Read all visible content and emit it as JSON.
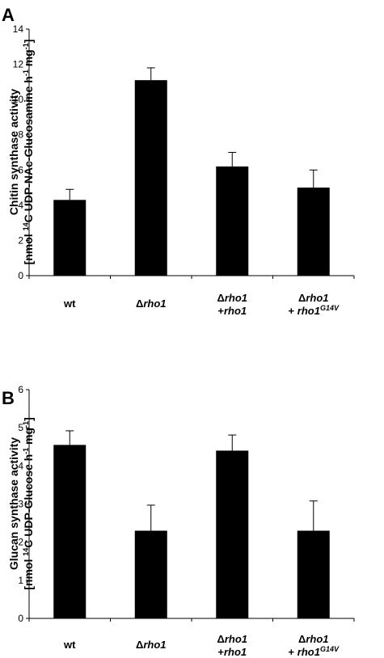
{
  "chart_data": [
    {
      "panel": "A",
      "type": "bar",
      "ylabel_line1": "Chitin synthase activity",
      "ylabel_line2": [
        {
          "t": "[nmol "
        },
        {
          "t": "14",
          "sup": true
        },
        {
          "t": "C UDP-NAc-Glucosamine h"
        },
        {
          "t": "-1",
          "sup": true
        },
        {
          "t": " mg"
        },
        {
          "t": "-1",
          "sup": true
        },
        {
          "t": "]"
        }
      ],
      "ylim": [
        0,
        14
      ],
      "yticks": [
        0,
        2,
        4,
        6,
        8,
        10,
        12,
        14
      ],
      "categories": [
        {
          "lines": [
            [
              {
                "t": "wt"
              }
            ]
          ]
        },
        {
          "lines": [
            [
              {
                "t": "Δ"
              },
              {
                "t": "rho1",
                "it": true
              }
            ]
          ]
        },
        {
          "lines": [
            [
              {
                "t": "Δ"
              },
              {
                "t": "rho1",
                "it": true
              }
            ],
            [
              {
                "t": "+"
              },
              {
                "t": "rho1",
                "it": true
              }
            ]
          ]
        },
        {
          "lines": [
            [
              {
                "t": "Δ"
              },
              {
                "t": "rho1",
                "it": true
              }
            ],
            [
              {
                "t": "+ "
              },
              {
                "t": "rho1",
                "it": true
              },
              {
                "t": "G14V",
                "it": true,
                "sup": true
              }
            ]
          ]
        }
      ],
      "values": [
        4.3,
        11.1,
        6.2,
        5.0
      ],
      "errors": [
        0.6,
        0.7,
        0.8,
        1.0
      ],
      "bar_color": "#000000",
      "grid": false
    },
    {
      "panel": "B",
      "type": "bar",
      "ylabel_line1": "Glucan synthase activity",
      "ylabel_line2": [
        {
          "t": "[nmol "
        },
        {
          "t": "14",
          "sup": true
        },
        {
          "t": "C UDP-Glucose h"
        },
        {
          "t": "-1",
          "sup": true
        },
        {
          "t": " mg"
        },
        {
          "t": "-1",
          "sup": true
        },
        {
          "t": "]"
        }
      ],
      "ylim": [
        0,
        6
      ],
      "yticks": [
        0,
        1,
        2,
        3,
        4,
        5,
        6
      ],
      "categories": [
        {
          "lines": [
            [
              {
                "t": "wt"
              }
            ]
          ]
        },
        {
          "lines": [
            [
              {
                "t": "Δ"
              },
              {
                "t": "rho1",
                "it": true
              }
            ]
          ]
        },
        {
          "lines": [
            [
              {
                "t": "Δ"
              },
              {
                "t": "rho1",
                "it": true
              }
            ],
            [
              {
                "t": "+"
              },
              {
                "t": "rho1",
                "it": true
              }
            ]
          ]
        },
        {
          "lines": [
            [
              {
                "t": "Δ"
              },
              {
                "t": "rho1",
                "it": true
              }
            ],
            [
              {
                "t": "+ "
              },
              {
                "t": "rho1",
                "it": true
              },
              {
                "t": "G14V",
                "it": true,
                "sup": true
              }
            ]
          ]
        }
      ],
      "values": [
        4.55,
        2.3,
        4.4,
        2.3
      ],
      "errors": [
        0.37,
        0.67,
        0.41,
        0.78
      ],
      "bar_color": "#000000",
      "grid": false
    }
  ]
}
